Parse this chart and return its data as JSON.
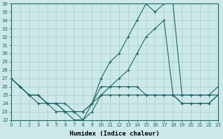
{
  "title": "",
  "xlabel": "Humidex (Indice chaleur)",
  "ylabel": "",
  "bg_color": "#cce8e8",
  "grid_color": "#aacccc",
  "line_color": "#1a6666",
  "xmin": 0,
  "xmax": 23,
  "ymin": 22,
  "ymax": 36,
  "series": {
    "line1": [
      27,
      26,
      25,
      25,
      24,
      24,
      23,
      23,
      23,
      24,
      27,
      29,
      30,
      32,
      34,
      36,
      35,
      36,
      36,
      25,
      25,
      25,
      25,
      25
    ],
    "line2": [
      27,
      26,
      25,
      24,
      24,
      23,
      23,
      22,
      22,
      23,
      25,
      25,
      25,
      25,
      25,
      25,
      25,
      25,
      25,
      25,
      25,
      25,
      25,
      26
    ],
    "line3": [
      27,
      26,
      25,
      25,
      24,
      24,
      23,
      23,
      22,
      24,
      25,
      26,
      27,
      28,
      30,
      32,
      33,
      34,
      25,
      24,
      24,
      24,
      24,
      25
    ],
    "line4": [
      27,
      26,
      25,
      25,
      24,
      24,
      24,
      23,
      23,
      24,
      26,
      26,
      26,
      26,
      26,
      25,
      25,
      25,
      25,
      24,
      24,
      24,
      24,
      25
    ]
  },
  "x": [
    0,
    1,
    2,
    3,
    4,
    5,
    6,
    7,
    8,
    9,
    10,
    11,
    12,
    13,
    14,
    15,
    16,
    17,
    18,
    19,
    20,
    21,
    22,
    23
  ],
  "marker": "+",
  "markersize": 3,
  "linewidth": 0.8,
  "xlabel_fontsize": 6.5,
  "tick_fontsize": 5
}
